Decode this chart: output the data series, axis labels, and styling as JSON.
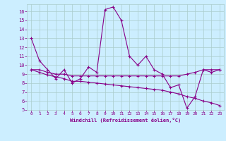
{
  "xlabel": "Windchill (Refroidissement éolien,°C)",
  "background_color": "#cceeff",
  "grid_color": "#aacccc",
  "line_color": "#880088",
  "x_data": [
    0,
    1,
    2,
    3,
    4,
    5,
    6,
    7,
    8,
    9,
    10,
    11,
    12,
    13,
    14,
    15,
    16,
    17,
    18,
    19,
    20,
    21,
    22,
    23
  ],
  "series1": [
    13,
    10.5,
    9.5,
    8.5,
    9.5,
    8.0,
    8.5,
    9.8,
    9.2,
    16.2,
    16.5,
    15.0,
    11.0,
    10.0,
    11.0,
    9.5,
    9.0,
    7.5,
    7.8,
    5.2,
    6.5,
    9.5,
    9.2,
    9.5
  ],
  "series2": [
    9.5,
    9.5,
    9.2,
    9.0,
    9.0,
    8.8,
    8.8,
    8.8,
    8.8,
    8.8,
    8.8,
    8.8,
    8.8,
    8.8,
    8.8,
    8.8,
    8.8,
    8.8,
    8.8,
    9.0,
    9.2,
    9.5,
    9.5,
    9.5
  ],
  "series3": [
    9.5,
    9.2,
    8.9,
    8.7,
    8.5,
    8.2,
    8.2,
    8.1,
    8.0,
    7.9,
    7.8,
    7.7,
    7.6,
    7.5,
    7.4,
    7.3,
    7.2,
    7.0,
    6.8,
    6.5,
    6.3,
    6.0,
    5.8,
    5.5
  ],
  "ylim": [
    5,
    16.8
  ],
  "xlim": [
    -0.5,
    23.5
  ],
  "yticks": [
    5,
    6,
    7,
    8,
    9,
    10,
    11,
    12,
    13,
    14,
    15,
    16
  ],
  "xticks": [
    0,
    1,
    2,
    3,
    4,
    5,
    6,
    7,
    8,
    9,
    10,
    11,
    12,
    13,
    14,
    15,
    16,
    17,
    18,
    19,
    20,
    21,
    22,
    23
  ]
}
